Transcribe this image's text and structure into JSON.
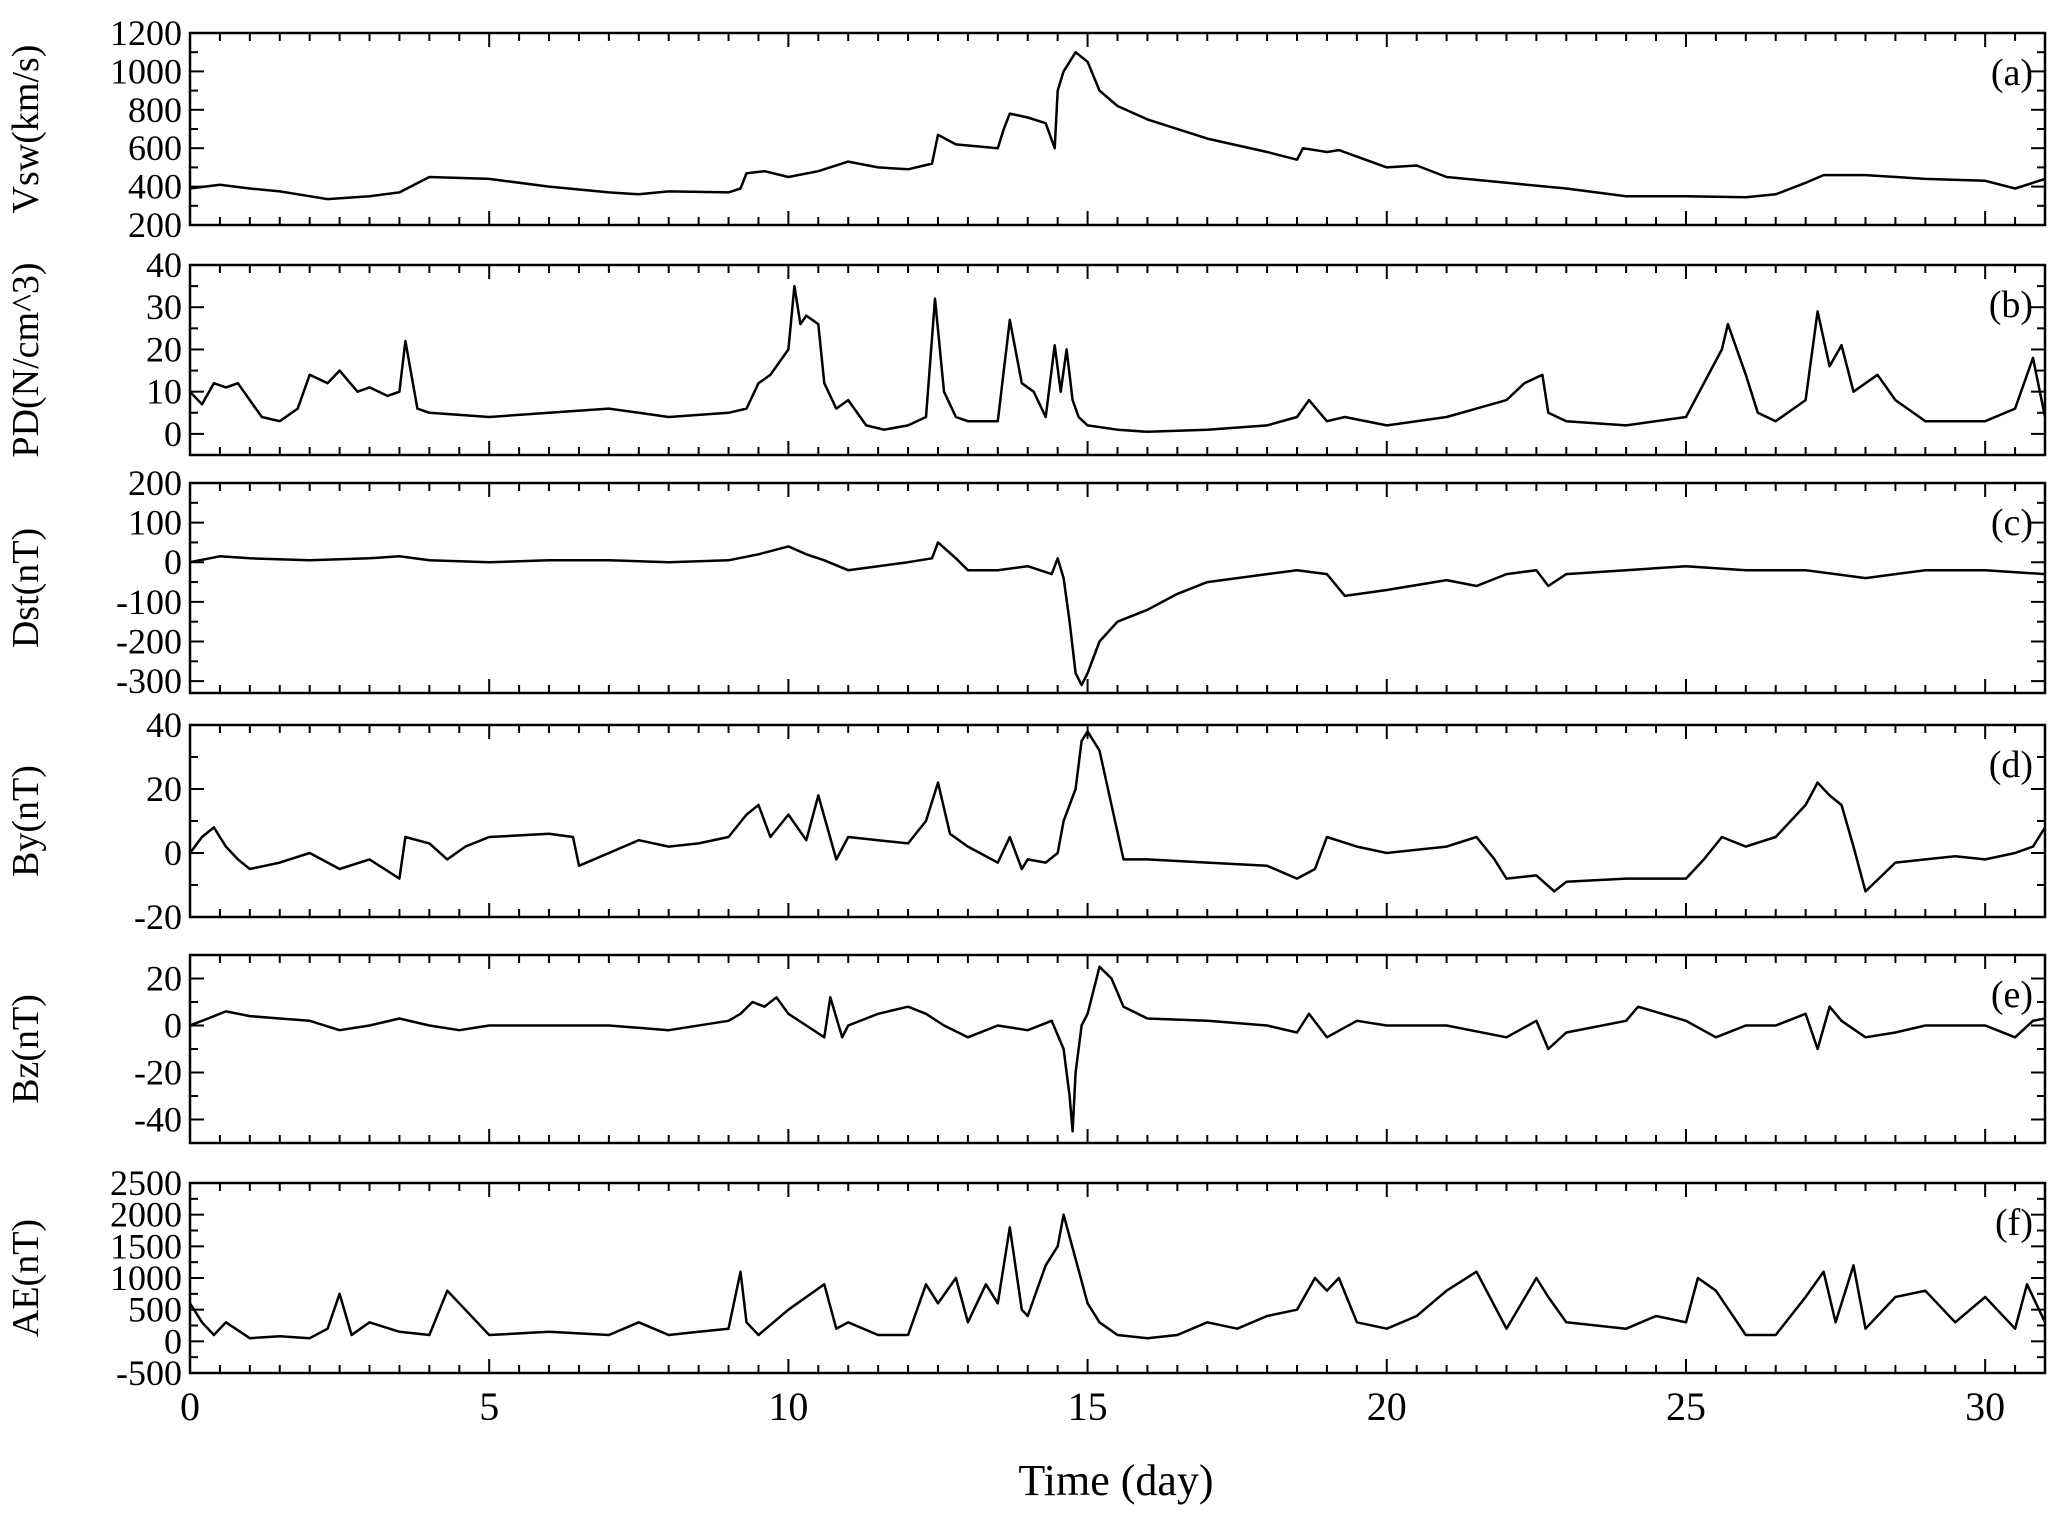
{
  "figure": {
    "x_axis": {
      "label": "Time (day)",
      "range": [
        0,
        31
      ],
      "ticks": [
        0,
        5,
        10,
        15,
        20,
        25,
        30
      ],
      "tick_labels": [
        "0",
        "5",
        "10",
        "15",
        "20",
        "25",
        "30"
      ]
    }
  },
  "chart_data": [
    {
      "type": "line",
      "panel": "(a)",
      "ylabel": "Vsw(km/s)",
      "xlabel": "",
      "ylim": [
        200,
        1200
      ],
      "yticks": [
        200,
        400,
        600,
        800,
        1000,
        1200
      ],
      "ytick_labels": [
        "200",
        "400",
        "600",
        "800",
        "1000",
        "1200"
      ],
      "grid": false,
      "series": [
        {
          "x": [
            0,
            0.5,
            1,
            1.5,
            2,
            2.3,
            3,
            3.5,
            4,
            5,
            6,
            7,
            7.5,
            8,
            9,
            9.2,
            9.3,
            9.6,
            10,
            10.5,
            11,
            11.5,
            12,
            12.4,
            12.5,
            12.8,
            13.5,
            13.6,
            13.7,
            14,
            14.3,
            14.45,
            14.5,
            14.6,
            14.8,
            15,
            15.2,
            15.5,
            16,
            17,
            18,
            18.5,
            18.6,
            19,
            19.2,
            20,
            20.5,
            21,
            22,
            23,
            24,
            25,
            26,
            26.5,
            27,
            27.3,
            28,
            29,
            30,
            30.5,
            31
          ],
          "y": [
            390,
            410,
            390,
            375,
            350,
            335,
            350,
            370,
            450,
            440,
            400,
            370,
            360,
            375,
            370,
            390,
            470,
            480,
            450,
            480,
            530,
            500,
            490,
            520,
            670,
            620,
            600,
            700,
            780,
            760,
            730,
            600,
            900,
            1000,
            1100,
            1050,
            900,
            820,
            750,
            650,
            580,
            540,
            600,
            580,
            590,
            500,
            510,
            450,
            420,
            390,
            350,
            350,
            345,
            360,
            420,
            460,
            460,
            440,
            430,
            390,
            440
          ]
        }
      ]
    },
    {
      "type": "line",
      "panel": "(b)",
      "ylabel": "PD(N/cm^3)",
      "xlabel": "",
      "ylim": [
        -5,
        40
      ],
      "yticks": [
        0,
        10,
        20,
        30,
        40
      ],
      "ytick_labels": [
        "0",
        "10",
        "20",
        "30",
        "40"
      ],
      "grid": false,
      "series": [
        {
          "x": [
            0,
            0.2,
            0.4,
            0.6,
            0.8,
            1,
            1.2,
            1.5,
            1.8,
            2,
            2.3,
            2.5,
            2.8,
            3,
            3.3,
            3.5,
            3.6,
            3.8,
            4,
            5,
            6,
            7,
            7.5,
            8,
            9,
            9.3,
            9.5,
            9.7,
            9.9,
            10,
            10.1,
            10.2,
            10.3,
            10.5,
            10.6,
            10.8,
            11,
            11.3,
            11.6,
            12,
            12.3,
            12.45,
            12.6,
            12.8,
            13,
            13.5,
            13.7,
            13.9,
            14.1,
            14.3,
            14.45,
            14.55,
            14.65,
            14.75,
            14.85,
            15,
            15.5,
            16,
            17,
            18,
            18.5,
            18.7,
            19,
            19.3,
            20,
            21,
            21.5,
            22,
            22.3,
            22.6,
            22.7,
            23,
            24,
            25,
            25.3,
            25.6,
            25.7,
            26,
            26.2,
            26.5,
            27,
            27.2,
            27.4,
            27.6,
            27.8,
            28.2,
            28.5,
            29,
            30,
            30.5,
            30.8,
            31
          ],
          "y": [
            10,
            7,
            12,
            11,
            12,
            8,
            4,
            3,
            6,
            14,
            12,
            15,
            10,
            11,
            9,
            10,
            22,
            6,
            5,
            4,
            5,
            6,
            5,
            4,
            5,
            6,
            12,
            14,
            18,
            20,
            35,
            26,
            28,
            26,
            12,
            6,
            8,
            2,
            1,
            2,
            4,
            32,
            10,
            4,
            3,
            3,
            27,
            12,
            10,
            4,
            21,
            10,
            20,
            8,
            4,
            2,
            1,
            0.5,
            1,
            2,
            4,
            8,
            3,
            4,
            2,
            4,
            6,
            8,
            12,
            14,
            5,
            3,
            2,
            4,
            12,
            20,
            26,
            14,
            5,
            3,
            8,
            29,
            16,
            21,
            10,
            14,
            8,
            3,
            3,
            6,
            18,
            4
          ]
        }
      ]
    },
    {
      "type": "line",
      "panel": "(c)",
      "ylabel": "Dst(nT)",
      "xlabel": "",
      "ylim": [
        -330,
        200
      ],
      "yticks": [
        -300,
        -200,
        -100,
        0,
        100,
        200
      ],
      "ytick_labels": [
        "-300",
        "-200",
        "-100",
        "0",
        "100",
        "200"
      ],
      "grid": false,
      "series": [
        {
          "x": [
            0,
            0.5,
            1,
            2,
            3,
            3.5,
            4,
            5,
            6,
            7,
            8,
            9,
            9.5,
            10,
            10.3,
            10.6,
            11,
            11.5,
            12,
            12.4,
            12.5,
            12.8,
            13,
            13.5,
            14,
            14.4,
            14.5,
            14.6,
            14.7,
            14.8,
            14.9,
            15,
            15.2,
            15.5,
            16,
            16.5,
            17,
            17.5,
            18,
            18.5,
            19,
            19.3,
            20,
            21,
            21.5,
            22,
            22.5,
            22.7,
            23,
            24,
            25,
            26,
            27,
            27.5,
            28,
            28.5,
            29,
            30,
            31
          ],
          "y": [
            0,
            15,
            10,
            5,
            10,
            15,
            5,
            0,
            5,
            5,
            0,
            5,
            20,
            40,
            20,
            5,
            -20,
            -10,
            0,
            10,
            50,
            10,
            -20,
            -20,
            -10,
            -30,
            10,
            -40,
            -150,
            -280,
            -310,
            -280,
            -200,
            -150,
            -120,
            -80,
            -50,
            -40,
            -30,
            -20,
            -30,
            -85,
            -70,
            -45,
            -60,
            -30,
            -20,
            -60,
            -30,
            -20,
            -10,
            -20,
            -20,
            -30,
            -40,
            -30,
            -20,
            -20,
            -30
          ]
        }
      ]
    },
    {
      "type": "line",
      "panel": "(d)",
      "ylabel": "By(nT)",
      "xlabel": "",
      "ylim": [
        -20,
        40
      ],
      "yticks": [
        -20,
        0,
        20,
        40
      ],
      "ytick_labels": [
        "-20",
        "0",
        "20",
        "40"
      ],
      "grid": false,
      "series": [
        {
          "x": [
            0,
            0.2,
            0.4,
            0.6,
            0.8,
            1,
            1.5,
            2,
            2.5,
            3,
            3.5,
            3.6,
            4,
            4.3,
            4.6,
            5,
            6,
            6.4,
            6.5,
            7,
            7.5,
            8,
            8.5,
            9,
            9.3,
            9.5,
            9.7,
            10,
            10.3,
            10.5,
            10.8,
            11,
            11.5,
            12,
            12.3,
            12.5,
            12.7,
            13,
            13.5,
            13.7,
            13.9,
            14,
            14.3,
            14.5,
            14.6,
            14.8,
            14.9,
            15,
            15.2,
            15.4,
            15.6,
            16,
            17,
            18,
            18.5,
            18.8,
            19,
            19.5,
            20,
            21,
            21.5,
            21.8,
            22,
            22.5,
            22.8,
            23,
            24,
            25,
            25.3,
            25.6,
            26,
            26.5,
            27,
            27.2,
            27.4,
            27.6,
            27.8,
            28,
            28.5,
            29,
            29.5,
            30,
            30.5,
            30.8,
            31
          ],
          "y": [
            0,
            5,
            8,
            2,
            -2,
            -5,
            -3,
            0,
            -5,
            -2,
            -8,
            5,
            3,
            -2,
            2,
            5,
            6,
            5,
            -4,
            0,
            4,
            2,
            3,
            5,
            12,
            15,
            5,
            12,
            4,
            18,
            -2,
            5,
            4,
            3,
            10,
            22,
            6,
            2,
            -3,
            5,
            -5,
            -2,
            -3,
            0,
            10,
            20,
            35,
            38,
            32,
            15,
            -2,
            -2,
            -3,
            -4,
            -8,
            -5,
            5,
            2,
            0,
            2,
            5,
            -2,
            -8,
            -7,
            -12,
            -9,
            -8,
            -8,
            -2,
            5,
            2,
            5,
            15,
            22,
            18,
            15,
            2,
            -12,
            -3,
            -2,
            -1,
            -2,
            0,
            2,
            8
          ]
        }
      ]
    },
    {
      "type": "line",
      "panel": "(e)",
      "ylabel": "Bz(nT)",
      "xlabel": "",
      "ylim": [
        -50,
        30
      ],
      "yticks": [
        -40,
        -20,
        0,
        20
      ],
      "ytick_labels": [
        "-40",
        "-20",
        "0",
        "20"
      ],
      "grid": false,
      "series": [
        {
          "x": [
            0,
            0.3,
            0.6,
            1,
            1.5,
            2,
            2.5,
            3,
            3.5,
            4,
            4.5,
            5,
            6,
            7,
            8,
            9,
            9.2,
            9.4,
            9.6,
            9.8,
            10,
            10.3,
            10.6,
            10.7,
            10.9,
            11,
            11.5,
            12,
            12.3,
            12.6,
            13,
            13.5,
            14,
            14.4,
            14.6,
            14.7,
            14.75,
            14.8,
            14.9,
            15,
            15.2,
            15.4,
            15.6,
            16,
            17,
            18,
            18.5,
            18.7,
            19,
            19.5,
            20,
            21,
            22,
            22.5,
            22.7,
            23,
            24,
            24.2,
            25,
            25.5,
            26,
            26.5,
            27,
            27.2,
            27.4,
            27.6,
            28,
            28.5,
            29,
            30,
            30.5,
            30.8,
            31
          ],
          "y": [
            0,
            3,
            6,
            4,
            3,
            2,
            -2,
            0,
            3,
            0,
            -2,
            0,
            0,
            0,
            -2,
            2,
            5,
            10,
            8,
            12,
            5,
            0,
            -5,
            12,
            -5,
            0,
            5,
            8,
            5,
            0,
            -5,
            0,
            -2,
            2,
            -10,
            -30,
            -45,
            -20,
            0,
            5,
            25,
            20,
            8,
            3,
            2,
            0,
            -3,
            5,
            -5,
            2,
            0,
            0,
            -5,
            2,
            -10,
            -3,
            2,
            8,
            2,
            -5,
            0,
            0,
            5,
            -10,
            8,
            2,
            -5,
            -3,
            0,
            0,
            -5,
            2,
            3
          ]
        }
      ]
    },
    {
      "type": "line",
      "panel": "(f)",
      "ylabel": "AE(nT)",
      "xlabel": "",
      "ylim": [
        -500,
        2500
      ],
      "yticks": [
        -500,
        0,
        500,
        1000,
        1500,
        2000,
        2500
      ],
      "ytick_labels": [
        "-500",
        "0",
        "500",
        "1000",
        "1500",
        "2000",
        "2500"
      ],
      "grid": false,
      "series": [
        {
          "x": [
            0,
            0.2,
            0.4,
            0.6,
            1,
            1.5,
            2,
            2.3,
            2.5,
            2.7,
            3,
            3.5,
            4,
            4.3,
            4.6,
            5,
            6,
            7,
            7.5,
            8,
            8.5,
            9,
            9.2,
            9.3,
            9.5,
            10,
            10.3,
            10.6,
            10.8,
            11,
            11.5,
            12,
            12.3,
            12.5,
            12.8,
            13,
            13.3,
            13.5,
            13.7,
            13.9,
            14,
            14.3,
            14.5,
            14.6,
            14.8,
            15,
            15.2,
            15.5,
            16,
            16.5,
            17,
            17.5,
            18,
            18.5,
            18.8,
            19,
            19.2,
            19.5,
            20,
            20.5,
            21,
            21.5,
            22,
            22.5,
            22.7,
            23,
            24,
            24.5,
            25,
            25.2,
            25.5,
            26,
            26.5,
            27,
            27.3,
            27.5,
            27.8,
            28,
            28.5,
            29,
            29.5,
            30,
            30.5,
            30.7,
            31
          ],
          "y": [
            600,
            300,
            100,
            300,
            50,
            80,
            50,
            200,
            750,
            100,
            300,
            150,
            100,
            800,
            500,
            100,
            150,
            100,
            300,
            100,
            150,
            200,
            1100,
            300,
            100,
            500,
            700,
            900,
            200,
            300,
            100,
            100,
            900,
            600,
            1000,
            300,
            900,
            600,
            1800,
            500,
            400,
            1200,
            1500,
            2000,
            1300,
            600,
            300,
            100,
            50,
            100,
            300,
            200,
            400,
            500,
            1000,
            800,
            1000,
            300,
            200,
            400,
            800,
            1100,
            200,
            1000,
            700,
            300,
            200,
            400,
            300,
            1000,
            800,
            100,
            100,
            700,
            1100,
            300,
            1200,
            200,
            700,
            800,
            300,
            700,
            200,
            900,
            300
          ]
        }
      ]
    }
  ]
}
